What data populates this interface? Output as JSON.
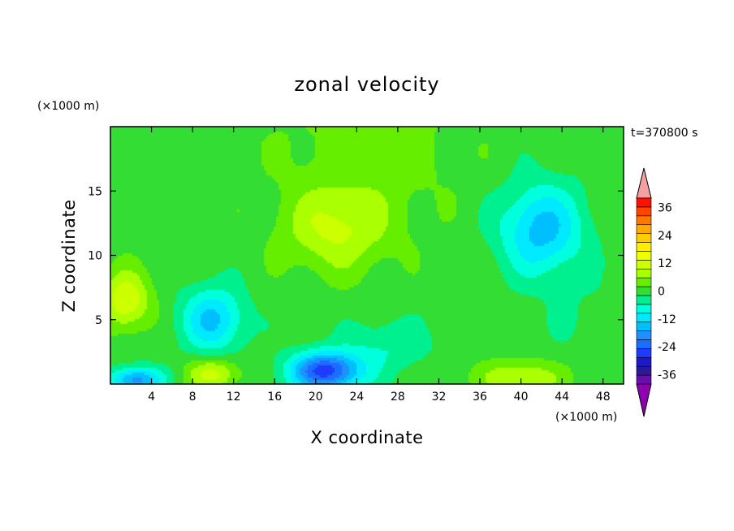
{
  "chart_data": {
    "type": "heatmap",
    "title": "zonal velocity",
    "xlabel": "X coordinate",
    "ylabel": "Z coordinate",
    "x_unit": "(×1000 m)",
    "y_unit": "(×1000 m)",
    "time_label": "t=370800 s",
    "xlim": [
      0,
      50
    ],
    "ylim": [
      0,
      20
    ],
    "x_ticks": [
      4,
      8,
      12,
      16,
      20,
      24,
      28,
      32,
      36,
      40,
      44,
      48
    ],
    "y_ticks": [
      5,
      10,
      15
    ],
    "colorbar": {
      "levels": [
        -40,
        -36,
        -32,
        -28,
        -24,
        -20,
        -16,
        -12,
        -8,
        -4,
        0,
        4,
        8,
        12,
        16,
        20,
        24,
        28,
        32,
        36,
        40
      ],
      "tick_labels": [
        36,
        24,
        12,
        0,
        -12,
        -24,
        -36
      ],
      "colors": [
        "#6a0dad",
        "#2a1a9a",
        "#1a1acc",
        "#1e3cff",
        "#1a6eff",
        "#1e90ff",
        "#00bfff",
        "#00eaff",
        "#00ffdd",
        "#00f090",
        "#33dd33",
        "#66ee00",
        "#aaff00",
        "#ccff00",
        "#eeff00",
        "#ffee00",
        "#ffcc00",
        "#ffaa00",
        "#ff7700",
        "#ff4400",
        "#ff1100"
      ],
      "under_color": "#8e00b0",
      "over_color": "#f4a0a0"
    },
    "features": [
      {
        "x": 22,
        "z": 12,
        "sx": 5,
        "sz": 3.2,
        "value": 10
      },
      {
        "x": 42,
        "z": 12,
        "sx": 4,
        "sz": 3.5,
        "value": -16
      },
      {
        "x": 21,
        "z": 1,
        "sx": 3.5,
        "sz": 1.5,
        "value": -28
      },
      {
        "x": 10,
        "z": 5,
        "sx": 3,
        "sz": 2.5,
        "value": -15
      },
      {
        "x": 1.5,
        "z": 6.5,
        "sx": 2.3,
        "sz": 2.2,
        "value": 14
      },
      {
        "x": 2.5,
        "z": 0.3,
        "sx": 2.5,
        "sz": 1,
        "value": -20
      },
      {
        "x": 10,
        "z": 0.8,
        "sx": 2.5,
        "sz": 1.2,
        "value": 12
      },
      {
        "x": 40,
        "z": 0.5,
        "sx": 4,
        "sz": 1.3,
        "value": 10
      },
      {
        "x": 27,
        "z": 3,
        "sx": 4,
        "sz": 2,
        "value": -6
      },
      {
        "x": 46,
        "z": 5,
        "sx": 4,
        "sz": 3,
        "value": -2
      },
      {
        "x": 25,
        "z": 18,
        "sx": 9,
        "sz": 6,
        "value": 4
      }
    ],
    "background_value": 2,
    "grid": false
  }
}
